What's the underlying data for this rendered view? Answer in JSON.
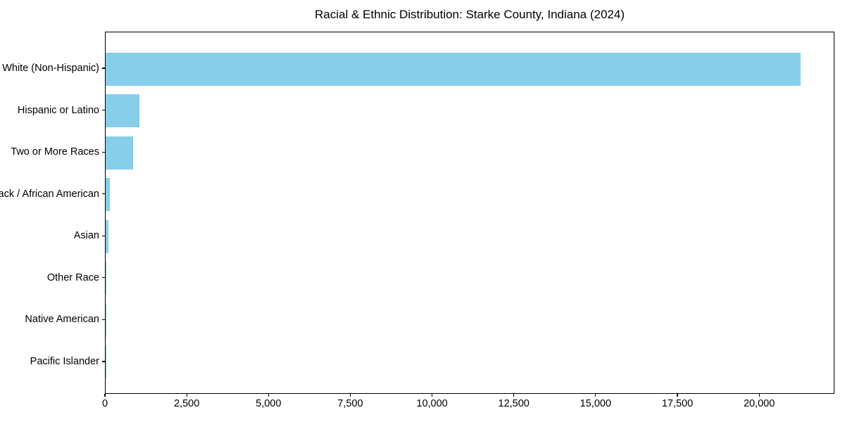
{
  "chart_data": {
    "type": "bar",
    "orientation": "horizontal",
    "title": "Racial & Ethnic Distribution: Starke County, Indiana (2024)",
    "categories": [
      "White (Non-Hispanic)",
      "Hispanic or Latino",
      "Two or More Races",
      "Black / African American",
      "Asian",
      "Other Race",
      "Native American",
      "Pacific Islander"
    ],
    "values": [
      21250,
      1030,
      830,
      130,
      85,
      25,
      15,
      5
    ],
    "bar_color": "#87CEEB",
    "background_color": "#ffffff",
    "frame_color": "#000000",
    "xlabel": "",
    "ylabel": "",
    "xlim": [
      0,
      22300
    ],
    "x_ticks": [
      0,
      2500,
      5000,
      7500,
      10000,
      12500,
      15000,
      17500,
      20000
    ],
    "x_tick_labels": [
      "0",
      "2,500",
      "5,000",
      "7,500",
      "10,000",
      "12,500",
      "15,000",
      "17,500",
      "20,000"
    ],
    "grid": false,
    "legend": "none"
  }
}
